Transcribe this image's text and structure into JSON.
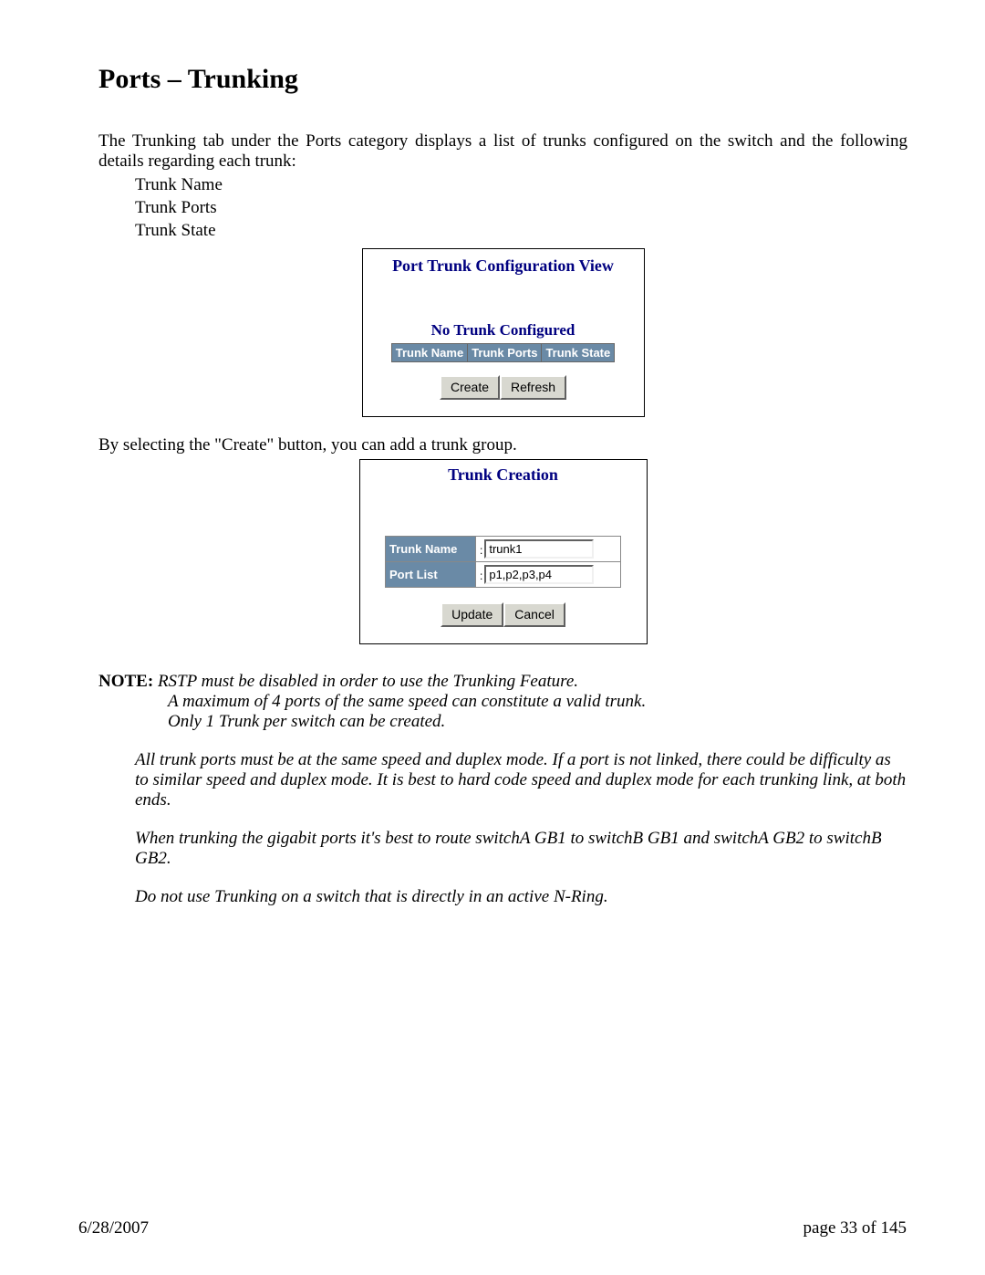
{
  "title": "Ports – Trunking",
  "intro": "The Trunking tab under the Ports category displays a list of trunks configured on the switch and the following details regarding each trunk:",
  "detail_items": [
    "Trunk Name",
    "Trunk Ports",
    "Trunk State"
  ],
  "panel1": {
    "title": "Port Trunk Configuration View",
    "subtitle": "No Trunk Configured",
    "columns": [
      "Trunk Name",
      "Trunk Ports",
      "Trunk State"
    ],
    "buttons": {
      "create": "Create",
      "refresh": "Refresh"
    }
  },
  "mid_text": "By selecting the \"Create\" button, you can add a trunk group.",
  "panel2": {
    "title": "Trunk Creation",
    "fields": {
      "trunk_name_label": "Trunk Name",
      "trunk_name_value": "trunk1",
      "port_list_label": "Port List",
      "port_list_value": "p1,p2,p3,p4"
    },
    "buttons": {
      "update": "Update",
      "cancel": "Cancel"
    }
  },
  "note": {
    "label": "NOTE:",
    "line1": "RSTP must be disabled in order to use the Trunking Feature.",
    "line2": "A maximum of 4 ports of the same speed can constitute a valid trunk.",
    "line3": "Only 1 Trunk per switch can be created.",
    "para1": "All trunk ports must be at the same speed and duplex mode.  If a port is not linked, there could be difficulty as to similar speed and duplex mode.  It is best to hard code speed and duplex mode for each trunking link, at both ends.",
    "para2": "When trunking the gigabit ports it's best to route switchA GB1 to switchB GB1 and switchA GB2 to switchB GB2.",
    "para3": "Do not use Trunking on a switch that is directly in an active N-Ring."
  },
  "footer": {
    "date": "6/28/2007",
    "page": "page 33 of 145"
  }
}
